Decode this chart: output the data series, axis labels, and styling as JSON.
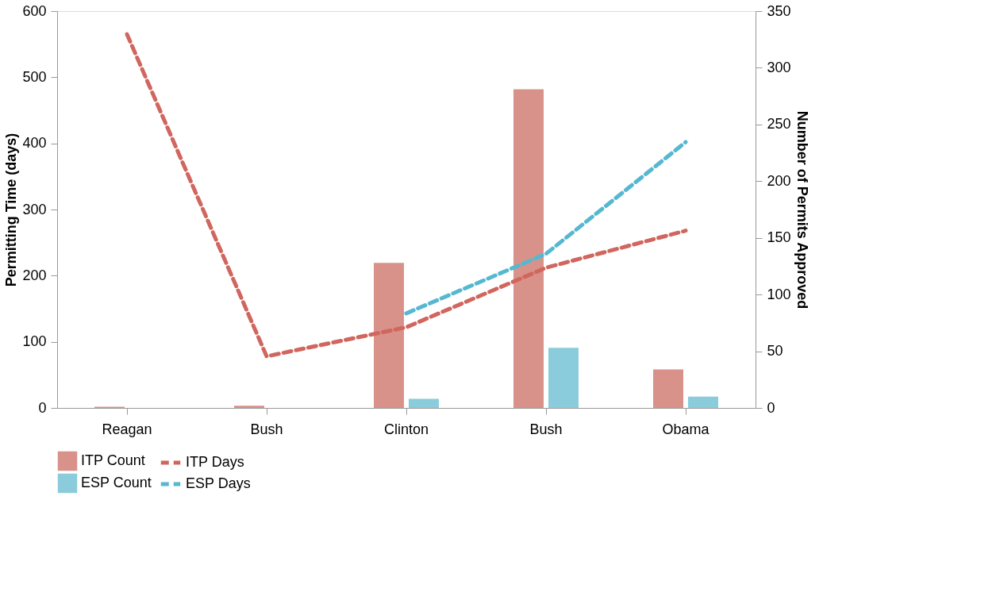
{
  "chart_data": {
    "type": "bar",
    "ylabel": "Permitting Time (days)",
    "y2label": "Number of Permits Approved",
    "categories": [
      "Reagan",
      "Bush",
      "Clinton",
      "Bush",
      "Obama"
    ],
    "series": [
      {
        "name": "ITP Count",
        "axis": "y2",
        "color": "#d9928a",
        "values": [
          1,
          2,
          128,
          281,
          34
        ]
      },
      {
        "name": "ESP Count",
        "axis": "y2",
        "color": "#8bccdc",
        "values": [
          0,
          0,
          8,
          53,
          10
        ]
      },
      {
        "name": "ITP Days",
        "type": "line",
        "axis": "y",
        "color": "#d0665e",
        "line_style": "dashed",
        "values": [
          565,
          78,
          122,
          212,
          268
        ]
      },
      {
        "name": "ESP Days",
        "type": "line",
        "axis": "y",
        "color": "#56b8d0",
        "line_style": "dashed",
        "values": [
          null,
          null,
          143,
          233,
          402
        ]
      }
    ],
    "ylim": [
      0,
      600
    ],
    "yticks": [
      0,
      100,
      200,
      300,
      400,
      500,
      600
    ],
    "y2lim": [
      0,
      350
    ],
    "y2ticks": [
      0,
      50,
      100,
      150,
      200,
      250,
      300,
      350
    ],
    "grid": false,
    "legend": "bottom"
  }
}
